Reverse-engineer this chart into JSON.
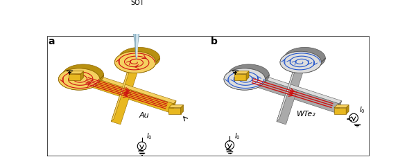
{
  "bg_color": "#ffffff",
  "panel_a_label": "a",
  "panel_b_label": "b",
  "sot_label": "SOT",
  "au_label": "Au",
  "wte2_label": "WTe₂",
  "i0_label": "$I_0$",
  "red_color": "#cc1111",
  "blue_color": "#2255cc",
  "gold_face": "#e8b820",
  "gold_top": "#f5d060",
  "gold_side": "#b89010",
  "gold_edge": "#906800",
  "gray_face": "#aaaaaa",
  "gray_top": "#dddddd",
  "gray_side": "#888888",
  "gray_edge": "#555555",
  "needle_color": "#aaccdd",
  "needle_dark": "#7799aa",
  "needle_highlight": "#ddeeff"
}
